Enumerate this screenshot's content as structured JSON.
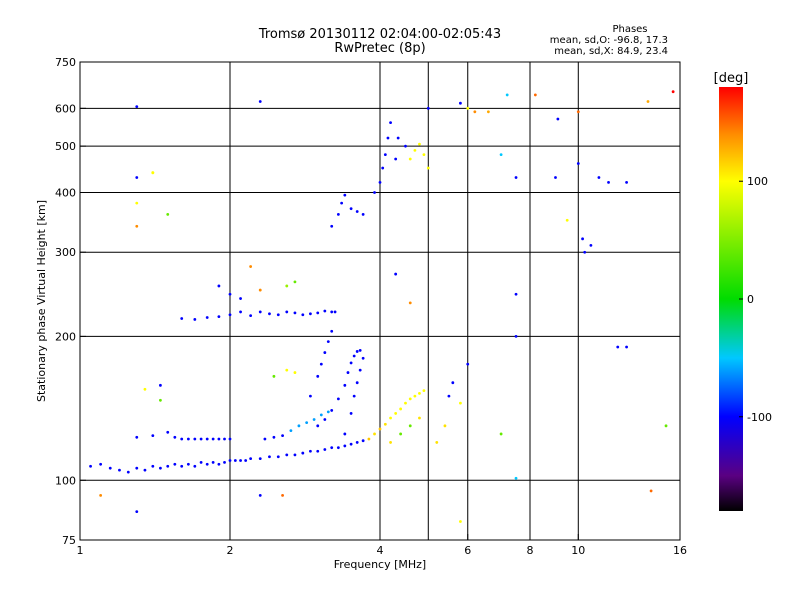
{
  "header": {
    "title_line1": "Tromsø 20130112 02:04:00-02:05:43",
    "title_line2": "RwPretec (8p)",
    "phases_title": "Phases",
    "phases_o": "mean, sd,O: -96.8, 17.3",
    "phases_x": "mean, sd,X:  84.9, 23.4"
  },
  "colorbar": {
    "label": "[deg]",
    "range": [
      -180,
      180
    ],
    "ticks": [
      {
        "value": 100,
        "label": "100"
      },
      {
        "value": 0,
        "label": "0"
      },
      {
        "value": -100,
        "label": "-100"
      }
    ]
  },
  "chart_data": {
    "type": "scatter",
    "xlabel": "Frequency [MHz]",
    "ylabel": "Stationary phase Virtual Height [km]",
    "xscale": "log",
    "yscale": "log",
    "xlim": [
      1,
      16
    ],
    "ylim": [
      75,
      750
    ],
    "xticks": [
      {
        "value": 1,
        "label": "1"
      },
      {
        "value": 2,
        "label": "2"
      },
      {
        "value": 4,
        "label": "4"
      },
      {
        "value": 6,
        "label": "6"
      },
      {
        "value": 8,
        "label": "8"
      },
      {
        "value": 10,
        "label": "10"
      },
      {
        "value": 16,
        "label": "16"
      }
    ],
    "yticks": [
      {
        "value": 75,
        "label": "75"
      },
      {
        "value": 100,
        "label": "100"
      },
      {
        "value": 200,
        "label": "200"
      },
      {
        "value": 300,
        "label": "300"
      },
      {
        "value": 400,
        "label": "400"
      },
      {
        "value": 500,
        "label": "500"
      },
      {
        "value": 600,
        "label": "600"
      },
      {
        "value": 750,
        "label": "750"
      }
    ],
    "x_gridlines": [
      2,
      4,
      5,
      6,
      8,
      10
    ],
    "y_gridlines": [
      100,
      200,
      300,
      400,
      500,
      600
    ],
    "grid": true,
    "colormap": "rainbow",
    "points": [
      [
        1.05,
        107,
        -100
      ],
      [
        1.1,
        108,
        -100
      ],
      [
        1.15,
        106,
        -100
      ],
      [
        1.2,
        105,
        -100
      ],
      [
        1.25,
        104,
        -100
      ],
      [
        1.3,
        106,
        -100
      ],
      [
        1.35,
        105,
        -100
      ],
      [
        1.4,
        107,
        -100
      ],
      [
        1.45,
        106,
        -100
      ],
      [
        1.5,
        107,
        -100
      ],
      [
        1.55,
        108,
        -100
      ],
      [
        1.6,
        107,
        -100
      ],
      [
        1.65,
        108,
        -100
      ],
      [
        1.7,
        107,
        -100
      ],
      [
        1.75,
        109,
        -100
      ],
      [
        1.8,
        108,
        -100
      ],
      [
        1.85,
        109,
        -100
      ],
      [
        1.9,
        108,
        -100
      ],
      [
        1.95,
        109,
        -100
      ],
      [
        2.0,
        110,
        -100
      ],
      [
        2.05,
        110,
        -100
      ],
      [
        2.1,
        110,
        -100
      ],
      [
        2.15,
        110,
        -100
      ],
      [
        2.2,
        111,
        -100
      ],
      [
        2.3,
        111,
        -100
      ],
      [
        2.4,
        112,
        -100
      ],
      [
        2.5,
        112,
        -100
      ],
      [
        2.6,
        113,
        -100
      ],
      [
        2.7,
        113,
        -100
      ],
      [
        2.8,
        114,
        -100
      ],
      [
        2.9,
        115,
        -100
      ],
      [
        3.0,
        115,
        -100
      ],
      [
        3.1,
        116,
        -100
      ],
      [
        3.2,
        117,
        -100
      ],
      [
        3.3,
        117,
        -100
      ],
      [
        3.4,
        118,
        -100
      ],
      [
        3.5,
        119,
        -100
      ],
      [
        3.6,
        120,
        -100
      ],
      [
        3.7,
        121,
        -100
      ],
      [
        1.3,
        123,
        -100
      ],
      [
        1.4,
        124,
        -100
      ],
      [
        1.5,
        126,
        -100
      ],
      [
        1.55,
        123,
        -100
      ],
      [
        1.6,
        122,
        -100
      ],
      [
        1.65,
        122,
        -100
      ],
      [
        1.7,
        122,
        -100
      ],
      [
        1.75,
        122,
        -100
      ],
      [
        1.8,
        122,
        -100
      ],
      [
        1.85,
        122,
        -100
      ],
      [
        1.9,
        122,
        -100
      ],
      [
        1.95,
        122,
        -100
      ],
      [
        2.0,
        122,
        -100
      ],
      [
        2.35,
        122,
        -100
      ],
      [
        2.45,
        123,
        -100
      ],
      [
        2.55,
        124,
        -100
      ],
      [
        2.65,
        127,
        -60
      ],
      [
        2.75,
        130,
        -60
      ],
      [
        2.85,
        132,
        -60
      ],
      [
        2.95,
        134,
        -60
      ],
      [
        3.05,
        137,
        -60
      ],
      [
        3.15,
        139,
        -60
      ],
      [
        3.0,
        130,
        -100
      ],
      [
        3.1,
        134,
        -100
      ],
      [
        3.2,
        140,
        -100
      ],
      [
        3.3,
        148,
        -100
      ],
      [
        3.4,
        158,
        -100
      ],
      [
        3.45,
        168,
        -100
      ],
      [
        3.5,
        176,
        -100
      ],
      [
        3.55,
        182,
        -100
      ],
      [
        3.6,
        186,
        -100
      ],
      [
        3.65,
        187,
        -100
      ],
      [
        3.4,
        125,
        -100
      ],
      [
        3.5,
        138,
        -100
      ],
      [
        3.55,
        150,
        -100
      ],
      [
        3.6,
        160,
        -100
      ],
      [
        3.65,
        170,
        -100
      ],
      [
        3.7,
        180,
        -100
      ],
      [
        2.9,
        150,
        -100
      ],
      [
        3.0,
        165,
        -100
      ],
      [
        3.05,
        175,
        -100
      ],
      [
        3.1,
        185,
        -100
      ],
      [
        3.15,
        195,
        -100
      ],
      [
        3.2,
        205,
        -100
      ],
      [
        3.25,
        225,
        -100
      ],
      [
        1.6,
        218,
        -100
      ],
      [
        1.7,
        217,
        -100
      ],
      [
        1.8,
        219,
        -100
      ],
      [
        1.9,
        220,
        -100
      ],
      [
        2.0,
        222,
        -100
      ],
      [
        2.1,
        225,
        -100
      ],
      [
        2.2,
        221,
        -100
      ],
      [
        2.3,
        225,
        -100
      ],
      [
        2.4,
        223,
        -100
      ],
      [
        2.5,
        222,
        -100
      ],
      [
        2.6,
        225,
        -100
      ],
      [
        2.7,
        224,
        -100
      ],
      [
        2.8,
        222,
        -100
      ],
      [
        2.9,
        223,
        -100
      ],
      [
        3.0,
        224,
        -100
      ],
      [
        3.1,
        226,
        -100
      ],
      [
        3.2,
        225,
        -100
      ],
      [
        1.9,
        255,
        -100
      ],
      [
        2.0,
        245,
        -100
      ],
      [
        2.1,
        240,
        -100
      ],
      [
        3.2,
        340,
        -100
      ],
      [
        3.3,
        360,
        -100
      ],
      [
        3.35,
        380,
        -100
      ],
      [
        3.4,
        395,
        -100
      ],
      [
        3.5,
        370,
        -100
      ],
      [
        3.6,
        365,
        -100
      ],
      [
        3.7,
        360,
        -100
      ],
      [
        3.9,
        400,
        -100
      ],
      [
        4.0,
        420,
        -100
      ],
      [
        4.05,
        450,
        -100
      ],
      [
        4.1,
        480,
        -100
      ],
      [
        4.15,
        520,
        -100
      ],
      [
        4.2,
        560,
        -100
      ],
      [
        4.3,
        470,
        -100
      ],
      [
        4.35,
        520,
        -100
      ],
      [
        4.5,
        500,
        -100
      ],
      [
        4.6,
        470,
        100
      ],
      [
        4.7,
        490,
        100
      ],
      [
        4.8,
        505,
        100
      ],
      [
        4.9,
        480,
        100
      ],
      [
        5.0,
        450,
        100
      ],
      [
        3.8,
        122,
        120
      ],
      [
        3.9,
        125,
        110
      ],
      [
        4.0,
        128,
        120
      ],
      [
        4.1,
        131,
        110
      ],
      [
        4.2,
        135,
        100
      ],
      [
        4.3,
        138,
        100
      ],
      [
        4.4,
        141,
        100
      ],
      [
        4.5,
        145,
        100
      ],
      [
        4.6,
        148,
        100
      ],
      [
        4.7,
        150,
        100
      ],
      [
        4.8,
        152,
        100
      ],
      [
        4.9,
        154,
        100
      ],
      [
        4.2,
        120,
        110
      ],
      [
        4.4,
        125,
        40
      ],
      [
        4.6,
        130,
        40
      ],
      [
        4.8,
        135,
        110
      ],
      [
        5.2,
        120,
        110
      ],
      [
        5.4,
        130,
        110
      ],
      [
        5.6,
        160,
        -100
      ],
      [
        6.0,
        175,
        -100
      ],
      [
        1.3,
        605,
        -100
      ],
      [
        2.3,
        620,
        -100
      ],
      [
        5.0,
        600,
        -100
      ],
      [
        5.8,
        615,
        -100
      ],
      [
        6.0,
        600,
        100
      ],
      [
        6.2,
        590,
        140
      ],
      [
        6.6,
        590,
        130
      ],
      [
        7.2,
        640,
        -50
      ],
      [
        8.2,
        640,
        150
      ],
      [
        9.1,
        570,
        -100
      ],
      [
        10.0,
        590,
        150
      ],
      [
        13.8,
        620,
        130
      ],
      [
        15.5,
        650,
        180
      ],
      [
        1.3,
        430,
        -100
      ],
      [
        1.4,
        440,
        100
      ],
      [
        1.3,
        380,
        100
      ],
      [
        1.5,
        360,
        40
      ],
      [
        7.0,
        480,
        -50
      ],
      [
        7.5,
        430,
        -100
      ],
      [
        9.0,
        430,
        -100
      ],
      [
        10.0,
        460,
        -100
      ],
      [
        11.0,
        430,
        -100
      ],
      [
        11.5,
        420,
        -100
      ],
      [
        12.5,
        420,
        -100
      ],
      [
        9.5,
        350,
        100
      ],
      [
        10.2,
        320,
        -100
      ],
      [
        10.3,
        300,
        -100
      ],
      [
        10.6,
        310,
        -100
      ],
      [
        7.5,
        245,
        -100
      ],
      [
        7.5,
        200,
        -100
      ],
      [
        12.0,
        190,
        -100
      ],
      [
        12.5,
        190,
        -100
      ],
      [
        1.3,
        340,
        140
      ],
      [
        1.4,
        440,
        100
      ],
      [
        2.2,
        280,
        140
      ],
      [
        2.3,
        250,
        140
      ],
      [
        2.6,
        255,
        60
      ],
      [
        2.7,
        260,
        40
      ],
      [
        4.3,
        270,
        -100
      ],
      [
        4.6,
        235,
        140
      ],
      [
        1.35,
        155,
        100
      ],
      [
        1.45,
        158,
        -100
      ],
      [
        1.45,
        147,
        40
      ],
      [
        2.45,
        165,
        40
      ],
      [
        2.6,
        170,
        100
      ],
      [
        2.7,
        168,
        100
      ],
      [
        5.5,
        150,
        -100
      ],
      [
        5.8,
        145,
        100
      ],
      [
        7.0,
        125,
        40
      ],
      [
        7.5,
        101,
        -50
      ],
      [
        1.1,
        93,
        140
      ],
      [
        1.3,
        86,
        -100
      ],
      [
        2.3,
        93,
        -100
      ],
      [
        2.55,
        93,
        150
      ],
      [
        5.8,
        82,
        100
      ],
      [
        14.0,
        95,
        150
      ],
      [
        15.0,
        130,
        40
      ]
    ]
  }
}
